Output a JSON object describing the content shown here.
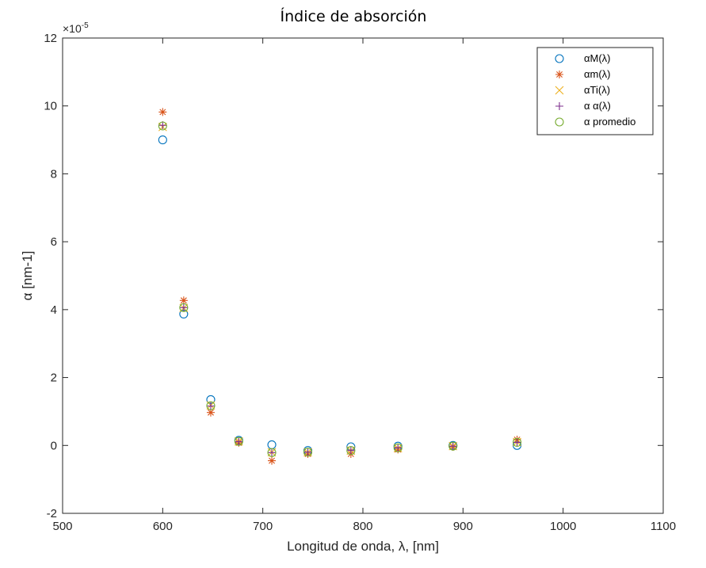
{
  "chart_data": {
    "type": "scatter",
    "title": "Índice de absorción",
    "xlabel": "Longitud de onda, λ, [nm]",
    "ylabel": "α [nm-1]",
    "y_exponent_label": "×10-5",
    "y_exponent": -5,
    "xlim": [
      500,
      1100
    ],
    "ylim": [
      -2,
      12
    ],
    "xticks": [
      500,
      600,
      700,
      800,
      900,
      1000,
      1100
    ],
    "yticks": [
      -2,
      0,
      2,
      4,
      6,
      8,
      10,
      12
    ],
    "grid": false,
    "legend_position": "top-right",
    "x": [
      600,
      621,
      648,
      676,
      709,
      745,
      788,
      835,
      890,
      954
    ],
    "series": [
      {
        "name": "αM(λ)",
        "marker": "circle",
        "color": "#0072BD",
        "values": [
          9.0,
          3.87,
          1.35,
          0.15,
          0.02,
          -0.15,
          -0.04,
          -0.02,
          0.0,
          0.0
        ]
      },
      {
        "name": "αm(λ)",
        "marker": "asterisk",
        "color": "#D95319",
        "values": [
          9.82,
          4.27,
          0.97,
          0.08,
          -0.45,
          -0.25,
          -0.25,
          -0.12,
          -0.04,
          0.17
        ]
      },
      {
        "name": "αTi(λ)",
        "marker": "x",
        "color": "#EDB120",
        "values": [
          9.38,
          4.05,
          1.18,
          0.12,
          -0.2,
          -0.2,
          -0.15,
          -0.08,
          -0.02,
          0.1
        ]
      },
      {
        "name": "α α(λ)",
        "marker": "plus",
        "color": "#7E2F8E",
        "values": [
          9.43,
          4.06,
          1.16,
          0.11,
          -0.21,
          -0.2,
          -0.14,
          -0.07,
          -0.02,
          0.09
        ]
      },
      {
        "name": "α promedio",
        "marker": "circle",
        "color": "#77AC30",
        "values": [
          9.41,
          4.06,
          1.17,
          0.12,
          -0.21,
          -0.2,
          -0.15,
          -0.07,
          -0.02,
          0.09
        ]
      }
    ]
  }
}
